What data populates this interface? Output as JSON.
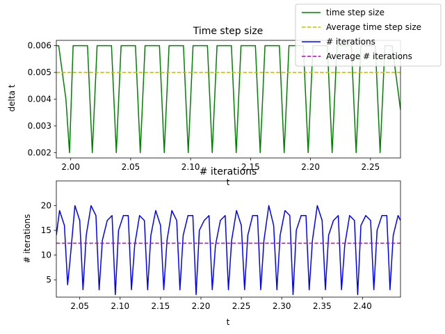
{
  "chart_data": [
    {
      "type": "line",
      "title": "Time step size",
      "xlabel": "t",
      "ylabel": "delta t",
      "xlim": [
        1.988,
        2.275
      ],
      "ylim": [
        0.0018,
        0.0062
      ],
      "xticks": [
        2.0,
        2.05,
        2.1,
        2.15,
        2.2,
        2.25
      ],
      "xtick_labels": [
        "2.00",
        "2.05",
        "2.10",
        "2.15",
        "2.20",
        "2.25"
      ],
      "yticks": [
        0.002,
        0.003,
        0.004,
        0.005,
        0.006
      ],
      "ytick_labels": [
        "0.002",
        "0.003",
        "0.004",
        "0.005",
        "0.006"
      ],
      "series": [
        {
          "name": "time step size",
          "color": "#008000",
          "style": "solid",
          "x": [
            1.988,
            1.99,
            1.996,
            1.999,
            2.002,
            2.008,
            2.014,
            2.018,
            2.022,
            2.028,
            2.034,
            2.038,
            2.042,
            2.048,
            2.054,
            2.058,
            2.062,
            2.068,
            2.074,
            2.078,
            2.082,
            2.088,
            2.094,
            2.098,
            2.102,
            2.108,
            2.114,
            2.118,
            2.122,
            2.128,
            2.134,
            2.138,
            2.142,
            2.148,
            2.154,
            2.158,
            2.162,
            2.168,
            2.174,
            2.178,
            2.182,
            2.188,
            2.194,
            2.198,
            2.202,
            2.208,
            2.214,
            2.218,
            2.222,
            2.228,
            2.234,
            2.238,
            2.242,
            2.248,
            2.254,
            2.258,
            2.262,
            2.268,
            2.275
          ],
          "y": [
            0.006,
            0.006,
            0.004,
            0.002,
            0.006,
            0.006,
            0.006,
            0.002,
            0.006,
            0.006,
            0.006,
            0.002,
            0.006,
            0.006,
            0.006,
            0.002,
            0.006,
            0.006,
            0.006,
            0.002,
            0.006,
            0.006,
            0.006,
            0.002,
            0.006,
            0.006,
            0.006,
            0.002,
            0.006,
            0.006,
            0.006,
            0.002,
            0.006,
            0.006,
            0.006,
            0.002,
            0.006,
            0.006,
            0.006,
            0.002,
            0.006,
            0.006,
            0.006,
            0.002,
            0.006,
            0.006,
            0.006,
            0.002,
            0.006,
            0.006,
            0.006,
            0.002,
            0.006,
            0.006,
            0.006,
            0.002,
            0.006,
            0.006,
            0.0036
          ]
        },
        {
          "name": "Average time step size",
          "color": "#bfbf00",
          "style": "dashed",
          "x": [
            1.988,
            2.275
          ],
          "y": [
            0.005,
            0.005
          ]
        }
      ]
    },
    {
      "type": "line",
      "title": "# iterations",
      "xlabel": "t",
      "ylabel": "# iterations",
      "xlim": [
        2.021,
        2.447
      ],
      "ylim": [
        1.5,
        25
      ],
      "xticks": [
        2.05,
        2.1,
        2.15,
        2.2,
        2.25,
        2.3,
        2.35,
        2.4
      ],
      "xtick_labels": [
        "2.05",
        "2.10",
        "2.15",
        "2.20",
        "2.25",
        "2.30",
        "2.35",
        "2.40"
      ],
      "yticks": [
        5,
        10,
        15,
        20
      ],
      "ytick_labels": [
        "5",
        "10",
        "15",
        "20"
      ],
      "series": [
        {
          "name": "# iterations",
          "color": "#0000ff",
          "style": "solid",
          "x": [
            2.021,
            2.025,
            2.031,
            2.035,
            2.038,
            2.044,
            2.05,
            2.054,
            2.058,
            2.064,
            2.07,
            2.074,
            2.078,
            2.084,
            2.09,
            2.094,
            2.098,
            2.104,
            2.11,
            2.114,
            2.118,
            2.124,
            2.13,
            2.134,
            2.138,
            2.144,
            2.15,
            2.154,
            2.158,
            2.164,
            2.17,
            2.174,
            2.178,
            2.184,
            2.19,
            2.194,
            2.198,
            2.204,
            2.21,
            2.214,
            2.218,
            2.224,
            2.23,
            2.234,
            2.238,
            2.244,
            2.25,
            2.254,
            2.258,
            2.264,
            2.27,
            2.274,
            2.278,
            2.284,
            2.29,
            2.294,
            2.298,
            2.304,
            2.31,
            2.314,
            2.318,
            2.324,
            2.33,
            2.334,
            2.338,
            2.344,
            2.35,
            2.354,
            2.358,
            2.364,
            2.37,
            2.374,
            2.378,
            2.384,
            2.39,
            2.394,
            2.398,
            2.404,
            2.41,
            2.414,
            2.418,
            2.424,
            2.43,
            2.434,
            2.438,
            2.444,
            2.447
          ],
          "y": [
            14,
            19,
            16,
            4,
            9,
            20,
            17,
            3,
            14,
            20,
            18,
            3,
            13,
            17,
            18,
            2,
            15,
            18,
            18,
            3,
            12,
            18,
            17,
            3,
            14,
            19,
            16,
            3,
            13,
            19,
            17,
            3,
            14,
            18,
            18,
            2,
            15,
            17,
            18,
            3,
            12,
            17,
            18,
            3,
            13,
            19,
            16,
            3,
            14,
            18,
            18,
            3,
            13,
            20,
            16,
            3,
            14,
            19,
            18,
            2,
            15,
            18,
            18,
            3,
            13,
            20,
            17,
            3,
            14,
            17,
            18,
            3,
            12,
            18,
            17,
            2,
            16,
            18,
            17,
            3,
            15,
            18,
            18,
            3,
            14,
            18,
            17
          ]
        },
        {
          "name": "Average # iterations",
          "color": "#bf00bf",
          "style": "dashed",
          "x": [
            2.021,
            2.447
          ],
          "y": [
            12.4,
            12.4
          ]
        }
      ]
    }
  ],
  "legend": {
    "placement": "top-right",
    "entries": [
      {
        "label": "time step size",
        "color": "#008000",
        "style": "solid"
      },
      {
        "label": "Average time step size",
        "color": "#bfbf00",
        "style": "dashed"
      },
      {
        "label": "# iterations",
        "color": "#0000ff",
        "style": "solid"
      },
      {
        "label": "Average # iterations",
        "color": "#bf00bf",
        "style": "dashed"
      }
    ]
  }
}
